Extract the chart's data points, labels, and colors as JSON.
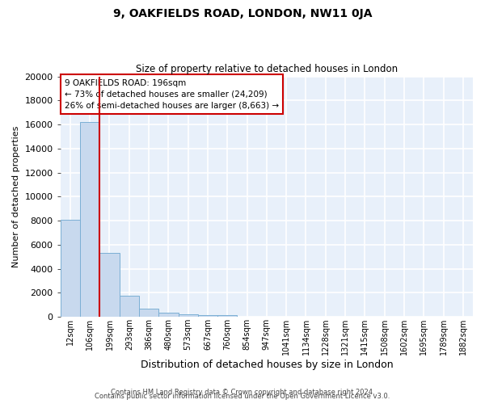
{
  "title1": "9, OAKFIELDS ROAD, LONDON, NW11 0JA",
  "title2": "Size of property relative to detached houses in London",
  "xlabel": "Distribution of detached houses by size in London",
  "ylabel": "Number of detached properties",
  "bar_color": "#c8d9ee",
  "bar_edge_color": "#7bafd4",
  "background_color": "#e8f0fa",
  "grid_color": "#ffffff",
  "categories": [
    "12sqm",
    "106sqm",
    "199sqm",
    "293sqm",
    "386sqm",
    "480sqm",
    "573sqm",
    "667sqm",
    "760sqm",
    "854sqm",
    "947sqm",
    "1041sqm",
    "1134sqm",
    "1228sqm",
    "1321sqm",
    "1415sqm",
    "1508sqm",
    "1602sqm",
    "1695sqm",
    "1789sqm",
    "1882sqm"
  ],
  "values": [
    8100,
    16200,
    5300,
    1750,
    680,
    310,
    200,
    165,
    145,
    0,
    0,
    0,
    0,
    0,
    0,
    0,
    0,
    0,
    0,
    0,
    0
  ],
  "ylim": [
    0,
    20000
  ],
  "yticks": [
    0,
    2000,
    4000,
    6000,
    8000,
    10000,
    12000,
    14000,
    16000,
    18000,
    20000
  ],
  "vline_color": "#cc0000",
  "annotation_line1": "9 OAKFIELDS ROAD: 196sqm",
  "annotation_line2": "← 73% of detached houses are smaller (24,209)",
  "annotation_line3": "26% of semi-detached houses are larger (8,663) →",
  "annotation_box_color": "#ffffff",
  "annotation_box_edge": "#cc0000",
  "footer1": "Contains HM Land Registry data © Crown copyright and database right 2024.",
  "footer2": "Contains public sector information licensed under the Open Government Licence v3.0."
}
